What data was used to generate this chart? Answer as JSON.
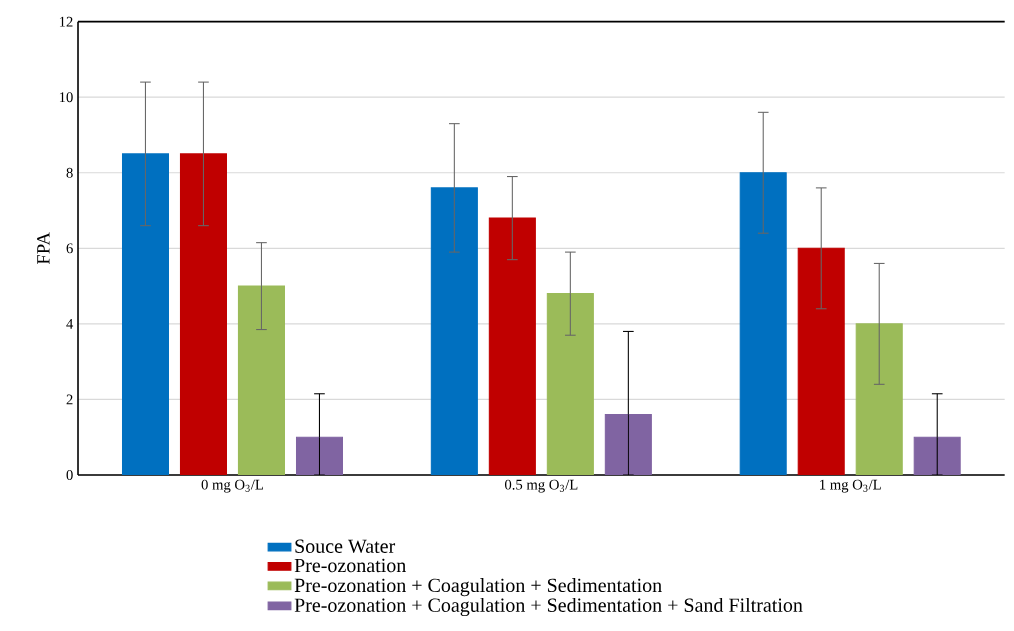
{
  "chart_data": {
    "type": "bar",
    "ylabel": "FPA",
    "categories": [
      "0 mg O$_{3}$/L",
      "0.5 mg O$_{3}$/L",
      "1 mg O$_{3}$/L"
    ],
    "series": [
      {
        "name": "Souce Water",
        "color": "#0070c0",
        "values": [
          8.5,
          7.6,
          8.0
        ],
        "errors": [
          1.9,
          1.7,
          1.6
        ]
      },
      {
        "name": "Pre-ozonation",
        "color": "#c00000",
        "values": [
          8.5,
          6.8,
          6.0
        ],
        "errors": [
          1.9,
          1.1,
          1.6
        ]
      },
      {
        "name": "Pre-ozonation + Coagulation + Sedimentation",
        "color": "#9bbb59",
        "values": [
          5.0,
          4.8,
          4.0
        ],
        "errors": [
          1.15,
          1.1,
          1.6
        ]
      },
      {
        "name": "Pre-ozonation + Coagulation + Sedimentation + Sand Filtration",
        "color": "#8064a2",
        "values": [
          1.0,
          1.6,
          1.0
        ],
        "errors": [
          [
            0,
            2.15
          ],
          [
            0,
            3.8
          ],
          [
            0,
            2.15
          ]
        ]
      }
    ],
    "ylim": [
      0,
      12
    ],
    "yticks": [
      0,
      2,
      4,
      6,
      8,
      10,
      12
    ],
    "grid": "y",
    "legend": "bottom"
  }
}
